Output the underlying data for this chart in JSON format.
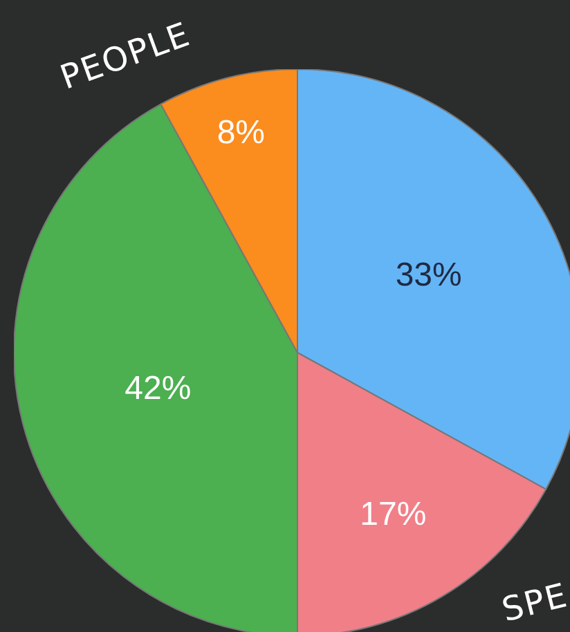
{
  "chart_data": {
    "type": "pie",
    "categories": [
      null,
      null,
      null,
      null
    ],
    "values": [
      33,
      17,
      42,
      8
    ],
    "colors": [
      "#64b5f6",
      "#f17f88",
      "#4caf50",
      "#fb8c1e"
    ],
    "value_labels": [
      "33%",
      "17%",
      "42%",
      "8%"
    ],
    "legend": false,
    "annotations": [
      "PEOPLE",
      "SPE"
    ]
  }
}
